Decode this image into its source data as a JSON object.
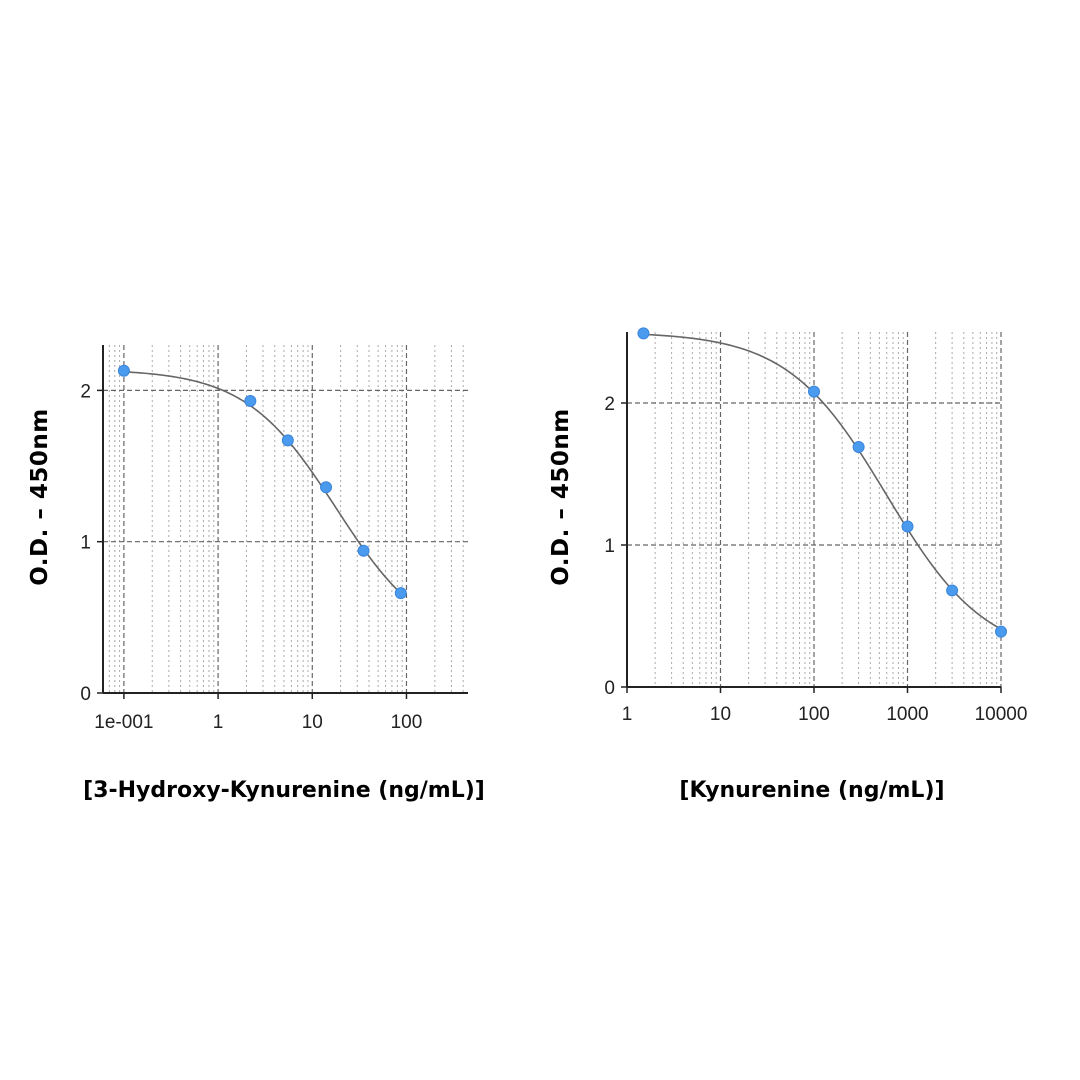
{
  "chart_data": [
    {
      "type": "scatter",
      "title": "",
      "xlabel": "[3-Hydroxy-Kynurenine (ng/mL)]",
      "ylabel": "O.D. – 450nm",
      "x_scale": "log",
      "xlim": [
        0.06,
        450
      ],
      "ylim": [
        0,
        2.3
      ],
      "x_ticks": [
        0.1,
        1,
        10,
        100
      ],
      "x_tick_labels": [
        "1e-001",
        "1",
        "10",
        "100"
      ],
      "y_ticks": [
        0,
        1,
        2
      ],
      "y_tick_labels": [
        "0",
        "1",
        "2"
      ],
      "grid": true,
      "series": [
        {
          "x": [
            0.1,
            2.2,
            5.5,
            14,
            35,
            87
          ],
          "y": [
            2.13,
            1.93,
            1.67,
            1.36,
            0.94,
            0.66
          ]
        }
      ],
      "fit_curve": {
        "top": 2.14,
        "bottom": 0.3,
        "ec50": 18,
        "hill": 0.9
      },
      "colors": {
        "point": "#4a9aee",
        "curve": "#666666",
        "grid": "#888888",
        "axis": "#222222"
      }
    },
    {
      "type": "scatter",
      "title": "",
      "xlabel": "[Kynurenine (ng/mL)]",
      "ylabel": "O.D. – 450nm",
      "x_scale": "log",
      "xlim": [
        1,
        10000
      ],
      "ylim": [
        0,
        2.5
      ],
      "x_ticks": [
        1,
        10,
        100,
        1000,
        10000
      ],
      "x_tick_labels": [
        "1",
        "10",
        "100",
        "1000",
        "10000"
      ],
      "y_ticks": [
        0,
        1,
        2
      ],
      "y_tick_labels": [
        "0",
        "1",
        "2"
      ],
      "grid": true,
      "series": [
        {
          "x": [
            1.5,
            100,
            300,
            1000,
            3000,
            10000
          ],
          "y": [
            2.49,
            2.08,
            1.69,
            1.13,
            0.68,
            0.39
          ]
        }
      ],
      "fit_curve": {
        "top": 2.5,
        "bottom": 0.2,
        "ec50": 600,
        "hill": 0.82
      },
      "colors": {
        "point": "#4a9aee",
        "curve": "#666666",
        "grid": "#888888",
        "axis": "#222222"
      }
    }
  ]
}
